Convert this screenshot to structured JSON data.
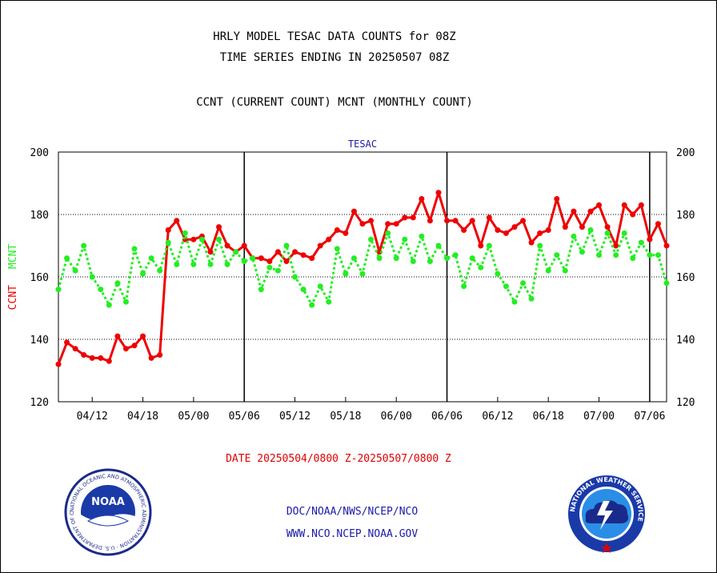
{
  "header": {
    "line1": "HRLY MODEL TESAC DATA COUNTS for 08Z",
    "line2": "TIME SERIES ENDING IN 20250507 08Z",
    "line3": "CCNT (CURRENT COUNT) MCNT (MONTHLY COUNT)"
  },
  "colors": {
    "ccnt": "#ee0000",
    "mcnt": "#22ee22",
    "axis": "#000000",
    "title": "#1a1aaa",
    "date": "#e00000",
    "links": "#1a1aaa"
  },
  "chart_data": {
    "type": "line",
    "title": "TESAC",
    "ylabel_left_ccnt": "CCNT",
    "ylabel_left_mcnt": "MCNT",
    "ylim": [
      120,
      200
    ],
    "y_ticks": [
      "120",
      "140",
      "160",
      "180",
      "200"
    ],
    "x_tick_labels": [
      "04/12",
      "04/18",
      "05/00",
      "05/06",
      "05/12",
      "05/18",
      "06/00",
      "06/06",
      "06/12",
      "06/18",
      "07/00",
      "07/06"
    ],
    "x_tick_index": [
      4,
      10,
      16,
      22,
      28,
      34,
      40,
      46,
      52,
      58,
      64,
      70
    ],
    "x_count": 73,
    "vertical_markers_index": [
      22,
      46,
      70
    ],
    "grid": "horizontal dotted at 140, 160, 180",
    "series": [
      {
        "name": "CCNT",
        "style": "solid",
        "values": [
          132,
          139,
          137,
          135,
          134,
          134,
          133,
          141,
          137,
          138,
          141,
          134,
          135,
          175,
          178,
          172,
          172,
          173,
          168,
          176,
          170,
          168,
          170,
          166,
          166,
          165,
          168,
          165,
          168,
          167,
          166,
          170,
          172,
          175,
          174,
          181,
          177,
          178,
          168,
          177,
          177,
          179,
          179,
          185,
          178,
          187,
          178,
          178,
          175,
          178,
          170,
          179,
          175,
          174,
          176,
          178,
          171,
          174,
          175,
          185,
          176,
          181,
          176,
          181,
          183,
          176,
          170,
          183,
          180,
          183,
          172,
          177,
          170
        ]
      },
      {
        "name": "MCNT",
        "style": "dotted",
        "values": [
          156,
          166,
          162,
          170,
          160,
          156,
          151,
          158,
          152,
          169,
          161,
          166,
          162,
          171,
          164,
          174,
          164,
          172,
          164,
          172,
          164,
          168,
          165,
          166,
          156,
          163,
          162,
          170,
          160,
          156,
          151,
          157,
          152,
          169,
          161,
          166,
          161,
          172,
          166,
          174,
          166,
          172,
          165,
          173,
          165,
          170,
          166,
          167,
          157,
          166,
          163,
          170,
          161,
          157,
          152,
          158,
          153,
          170,
          162,
          167,
          162,
          173,
          168,
          175,
          167,
          174,
          167,
          174,
          166,
          171,
          167,
          167,
          158
        ]
      }
    ]
  },
  "footer": {
    "date_range": "DATE 20250504/0800 Z-20250507/0800 Z",
    "link1": "DOC/NOAA/NWS/NCEP/NCO",
    "link2": "WWW.NCO.NCEP.NOAA.GOV",
    "noaa_logo_text": "NOAA",
    "noaa_ring_text": "NATIONAL OCEANIC AND ATMOSPHERIC ADMINISTRATION · U.S. DEPARTMENT OF COMMERCE ·",
    "nws_ring_text": "NATIONAL WEATHER SERVICE"
  }
}
